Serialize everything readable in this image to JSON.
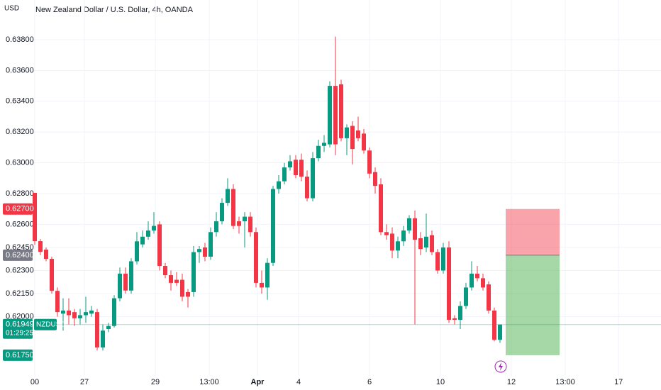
{
  "chart_data": {
    "type": "candlestick",
    "currency": "USD",
    "title": "New Zealand Dollar / U.S. Dollar, 4h, OANDA",
    "up_color": "#089981",
    "down_color": "#f23645",
    "open": [
      0.62805,
      0.62491,
      0.62436,
      0.62376,
      0.62168,
      0.6202,
      0.6204,
      0.6203,
      0.6199,
      0.6201,
      0.6202,
      0.6203,
      0.618,
      0.6192,
      0.6194,
      0.6212,
      0.6228,
      0.6217,
      0.6236,
      0.6247,
      0.6252,
      0.6256,
      0.626,
      0.6233,
      0.6227,
      0.6224,
      0.6224,
      0.6216,
      0.6216,
      0.6242,
      0.6245,
      0.6239,
      0.6255,
      0.6262,
      0.6274,
      0.6283,
      0.6262,
      0.6262,
      0.6265,
      0.6255,
      0.6222,
      0.6219,
      0.6235,
      0.6283,
      0.6288,
      0.6297,
      0.6302,
      0.6302,
      0.6291,
      0.6277,
      0.6303,
      0.6311,
      0.6312,
      0.635,
      0.6351,
      0.6316,
      0.6324,
      0.6321,
      0.6319,
      0.6308,
      0.6294,
      0.6286,
      0.6255,
      0.6254,
      0.6243,
      0.6249,
      0.6256,
      0.6264,
      0.6251,
      0.6245,
      0.6253,
      0.6242,
      0.623,
      0.6245,
      0.6199,
      0.6198,
      0.6207,
      0.6219,
      0.6228,
      0.6225,
      0.6221,
      0.6204,
      0.6185
    ],
    "high": [
      0.62805,
      0.62505,
      0.6245,
      0.6239,
      0.6219,
      0.6212,
      0.6212,
      0.6205,
      0.6205,
      0.6213,
      0.6207,
      0.6205,
      0.6195,
      0.6196,
      0.6214,
      0.6232,
      0.6232,
      0.6238,
      0.6255,
      0.6256,
      0.6262,
      0.6268,
      0.6262,
      0.6235,
      0.623,
      0.6229,
      0.6228,
      0.6218,
      0.6246,
      0.6246,
      0.6248,
      0.6258,
      0.6268,
      0.6277,
      0.629,
      0.6286,
      0.6265,
      0.6268,
      0.6268,
      0.6258,
      0.623,
      0.6238,
      0.6285,
      0.6292,
      0.63,
      0.6305,
      0.6305,
      0.6306,
      0.6295,
      0.6307,
      0.6315,
      0.6318,
      0.6353,
      0.6382,
      0.6354,
      0.6325,
      0.6327,
      0.633,
      0.6322,
      0.631,
      0.6297,
      0.629,
      0.626,
      0.6258,
      0.6252,
      0.6259,
      0.6266,
      0.6269,
      0.6255,
      0.6267,
      0.6256,
      0.6244,
      0.6248,
      0.6249,
      0.6201,
      0.621,
      0.6222,
      0.6236,
      0.6233,
      0.6228,
      0.6223,
      0.6206,
      0.6195
    ],
    "low": [
      0.62468,
      0.624,
      0.6236,
      0.6215,
      0.62,
      0.6191,
      0.6195,
      0.6194,
      0.6195,
      0.6196,
      0.62,
      0.6178,
      0.6178,
      0.619,
      0.6193,
      0.621,
      0.6215,
      0.6215,
      0.6234,
      0.6245,
      0.625,
      0.6254,
      0.623,
      0.6225,
      0.6217,
      0.622,
      0.621,
      0.6206,
      0.6213,
      0.6235,
      0.6236,
      0.6237,
      0.6252,
      0.626,
      0.6272,
      0.6257,
      0.6254,
      0.6245,
      0.6252,
      0.6219,
      0.6215,
      0.6211,
      0.6233,
      0.628,
      0.6286,
      0.6295,
      0.629,
      0.6288,
      0.6275,
      0.6275,
      0.6301,
      0.6307,
      0.631,
      0.6305,
      0.6314,
      0.6305,
      0.6299,
      0.6314,
      0.6306,
      0.629,
      0.628,
      0.6253,
      0.625,
      0.6238,
      0.6238,
      0.6246,
      0.6254,
      0.6195,
      0.624,
      0.6242,
      0.624,
      0.6228,
      0.6228,
      0.6196,
      0.6195,
      0.6192,
      0.6205,
      0.6217,
      0.6223,
      0.6217,
      0.6202,
      0.6184,
      0.6183
    ],
    "close": [
      0.62491,
      0.62422,
      0.62376,
      0.62168,
      0.6203,
      0.6204,
      0.6201,
      0.6199,
      0.6201,
      0.6203,
      0.6204,
      0.618,
      0.6191,
      0.6194,
      0.6212,
      0.6228,
      0.6217,
      0.6236,
      0.6249,
      0.6252,
      0.6256,
      0.6259,
      0.6233,
      0.6227,
      0.6222,
      0.6222,
      0.6213,
      0.6213,
      0.6242,
      0.6244,
      0.6239,
      0.6255,
      0.6262,
      0.6274,
      0.6283,
      0.6259,
      0.6259,
      0.6265,
      0.6255,
      0.6222,
      0.6219,
      0.6235,
      0.6283,
      0.6288,
      0.6297,
      0.6301,
      0.6292,
      0.6291,
      0.6277,
      0.6303,
      0.6311,
      0.6313,
      0.635,
      0.6312,
      0.6316,
      0.6323,
      0.6309,
      0.6316,
      0.6308,
      0.6293,
      0.6285,
      0.6255,
      0.6253,
      0.6243,
      0.6249,
      0.6256,
      0.6264,
      0.625,
      0.6244,
      0.6252,
      0.6242,
      0.623,
      0.6245,
      0.6198,
      0.6198,
      0.6207,
      0.6219,
      0.6228,
      0.6225,
      0.6219,
      0.6204,
      0.6185,
      0.61949
    ],
    "xlim": [
      -0.125,
      110.375
    ],
    "xticks": [
      {
        "value": 0,
        "label": "00"
      },
      {
        "value": 8.75,
        "label": "27"
      },
      {
        "value": 21.25,
        "label": "29"
      },
      {
        "value": 30.75,
        "label": "13:00"
      },
      {
        "value": 39.25,
        "label": "Apr"
      },
      {
        "value": 46.5,
        "label": "4"
      },
      {
        "value": 59,
        "label": "6"
      },
      {
        "value": 71.5,
        "label": "10"
      },
      {
        "value": 84,
        "label": "12"
      },
      {
        "value": 93.5,
        "label": "13:00"
      },
      {
        "value": 102.9,
        "label": "17"
      }
    ],
    "ylim": [
      0.61616,
      0.64058
    ],
    "yticks": [
      {
        "value": 0.638,
        "label": "0.63800"
      },
      {
        "value": 0.636,
        "label": "0.63600"
      },
      {
        "value": 0.634,
        "label": "0.63400"
      },
      {
        "value": 0.632,
        "label": "0.63200"
      },
      {
        "value": 0.63,
        "label": "0.63000"
      },
      {
        "value": 0.628,
        "label": "0.62800"
      },
      {
        "value": 0.626,
        "label": "0.62600"
      },
      {
        "value": 0.6245,
        "label": "0.62450"
      },
      {
        "value": 0.623,
        "label": "0.62300"
      },
      {
        "value": 0.6215,
        "label": "0.62150"
      },
      {
        "value": 0.62,
        "label": "0.62000"
      }
    ],
    "current_price": {
      "value": 0.61949,
      "label": "0.61949",
      "symbol": "NZDUSD",
      "countdown": "01:29:25"
    },
    "position": {
      "start": 83,
      "end": 92.5,
      "stop": {
        "value": 0.627,
        "label": "0.62700"
      },
      "entry": {
        "value": 0.624,
        "label": "0.62400"
      },
      "target": {
        "value": 0.6175,
        "label": "0.61750"
      }
    },
    "grid": true
  }
}
